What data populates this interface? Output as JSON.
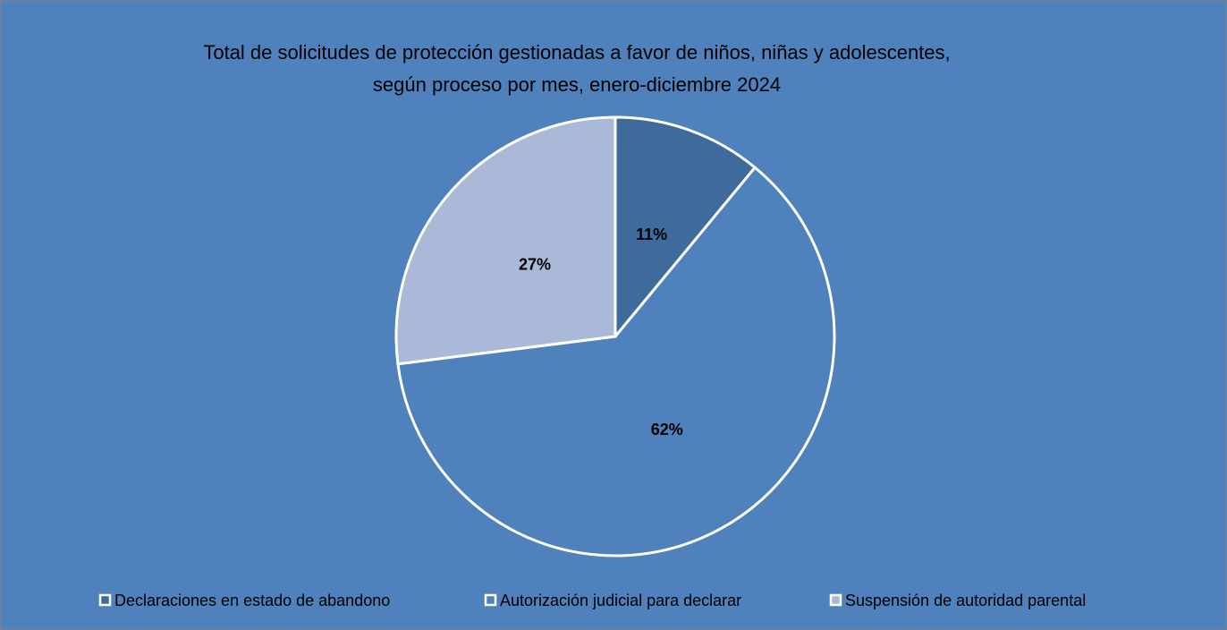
{
  "chart_data": {
    "type": "pie",
    "title": [
      "Total de solicitudes de protección gestionadas a  favor de niños, niñas y adolescentes,",
      "según  proceso por mes, enero-diciembre 2024"
    ],
    "categories": [
      "Declaraciones en estado de abandono",
      "Autorización judicial para declarar",
      "Suspensión de autoridad parental"
    ],
    "values": [
      11,
      62,
      27
    ],
    "value_labels": [
      "11%",
      "62%",
      "27%"
    ],
    "colors": [
      "#3e6a9c",
      "#4f81bd",
      "#aab9d7"
    ],
    "background": "#4f81bd",
    "legend": "bottom"
  }
}
